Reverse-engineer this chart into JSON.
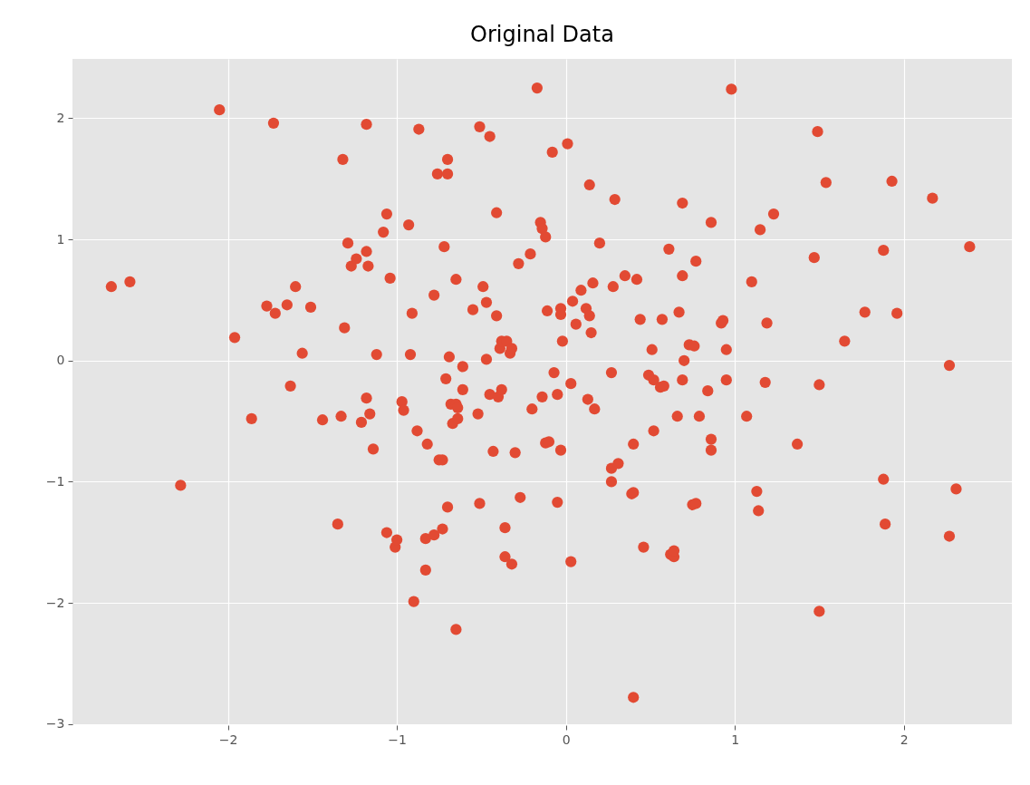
{
  "chart_data": {
    "type": "scatter",
    "title": "Original Data",
    "color": "#e24a33",
    "marker": "circle",
    "grid": true,
    "xlim": [
      -2.92,
      2.64
    ],
    "ylim": [
      -3.01,
      2.49
    ],
    "xticks": [
      {
        "value": -2,
        "label": "−2"
      },
      {
        "value": -1,
        "label": "−1"
      },
      0,
      1,
      2
    ],
    "yticks": [
      {
        "value": -3,
        "label": "−3"
      },
      {
        "value": -2,
        "label": "−2"
      },
      {
        "value": -1,
        "label": "−1"
      },
      0,
      1,
      2
    ],
    "x": [
      -2.69,
      -2.58,
      -2.28,
      -2.05,
      -1.96,
      -1.86,
      -1.77,
      -1.73,
      -1.72,
      -1.65,
      -1.63,
      -1.6,
      -1.56,
      -1.51,
      -1.44,
      -1.35,
      -1.32,
      -1.33,
      -1.31,
      -1.29,
      -1.27,
      -1.24,
      -1.21,
      -1.18,
      -1.18,
      -1.18,
      -1.17,
      -1.16,
      -1.14,
      -1.12,
      -1.08,
      -1.06,
      -1.06,
      -1.04,
      -1.01,
      -1.0,
      -0.97,
      -0.96,
      -0.93,
      -0.92,
      -0.91,
      -0.9,
      -0.88,
      -0.87,
      -0.83,
      -0.83,
      -0.82,
      -0.78,
      -0.78,
      -0.76,
      -0.75,
      -0.73,
      -0.73,
      -0.72,
      -0.71,
      -0.7,
      -0.7,
      -0.7,
      -0.69,
      -0.68,
      -0.67,
      -0.65,
      -0.65,
      -0.65,
      -0.64,
      -0.64,
      -0.61,
      -0.61,
      -0.55,
      -0.52,
      -0.51,
      -0.51,
      -0.49,
      -0.47,
      -0.47,
      -0.45,
      -0.45,
      -0.43,
      -0.41,
      -0.41,
      -0.4,
      -0.39,
      -0.38,
      -0.38,
      -0.36,
      -0.36,
      -0.35,
      -0.33,
      -0.32,
      -0.32,
      -0.3,
      -0.28,
      -0.27,
      -0.21,
      -0.2,
      -0.17,
      -0.15,
      -0.14,
      -0.14,
      -0.12,
      -0.12,
      -0.11,
      -0.1,
      -0.08,
      -0.07,
      -0.05,
      -0.05,
      -0.03,
      -0.03,
      -0.03,
      -0.02,
      0.01,
      0.03,
      0.03,
      0.04,
      0.06,
      0.09,
      0.12,
      0.13,
      0.14,
      0.14,
      0.15,
      0.16,
      0.17,
      0.2,
      0.27,
      0.27,
      0.27,
      0.28,
      0.29,
      0.31,
      0.35,
      0.39,
      0.4,
      0.4,
      0.4,
      0.42,
      0.44,
      0.46,
      0.49,
      0.51,
      0.52,
      0.52,
      0.56,
      0.57,
      0.58,
      0.61,
      0.62,
      0.64,
      0.64,
      0.66,
      0.67,
      0.69,
      0.69,
      0.69,
      0.7,
      0.73,
      0.75,
      0.76,
      0.77,
      0.77,
      0.79,
      0.84,
      0.86,
      0.86,
      0.86,
      0.92,
      0.93,
      0.95,
      0.95,
      0.98,
      1.07,
      1.1,
      1.13,
      1.14,
      1.15,
      1.18,
      1.19,
      1.23,
      1.37,
      1.47,
      1.49,
      1.5,
      1.5,
      1.54,
      1.65,
      1.77,
      1.88,
      1.88,
      1.89,
      1.93,
      1.96,
      2.17,
      2.27,
      2.27,
      2.31,
      2.39
    ],
    "values": [
      0.61,
      0.65,
      -1.03,
      2.07,
      0.19,
      -0.48,
      0.45,
      1.96,
      0.39,
      0.46,
      -0.21,
      0.61,
      0.06,
      0.44,
      -0.49,
      -1.35,
      1.66,
      -0.46,
      0.27,
      0.97,
      0.78,
      0.84,
      -0.51,
      1.95,
      0.9,
      -0.31,
      0.78,
      -0.44,
      -0.73,
      0.05,
      1.06,
      -1.42,
      1.21,
      0.68,
      -1.54,
      -1.48,
      -0.34,
      -0.41,
      1.12,
      0.05,
      0.39,
      -1.99,
      -0.58,
      1.91,
      -1.73,
      -1.47,
      -0.69,
      0.54,
      -1.44,
      1.54,
      -0.82,
      -1.39,
      -0.82,
      0.94,
      -0.15,
      1.54,
      1.66,
      -1.21,
      0.03,
      -0.36,
      -0.52,
      0.67,
      -0.36,
      -2.22,
      -0.48,
      -0.39,
      -0.05,
      -0.24,
      0.42,
      -0.44,
      -1.18,
      1.93,
      0.61,
      0.48,
      0.01,
      -0.28,
      1.85,
      -0.75,
      1.22,
      0.37,
      -0.3,
      0.1,
      0.16,
      -0.24,
      -1.38,
      -1.62,
      0.16,
      0.06,
      0.1,
      -1.68,
      -0.76,
      0.8,
      -1.13,
      0.88,
      -0.4,
      2.25,
      1.14,
      1.09,
      -0.3,
      1.02,
      -0.68,
      0.41,
      -0.67,
      1.72,
      -0.1,
      -0.28,
      -1.17,
      0.43,
      -0.74,
      0.38,
      0.16,
      1.79,
      -0.19,
      -1.66,
      0.49,
      0.3,
      0.58,
      0.43,
      -0.32,
      1.45,
      0.37,
      0.23,
      0.64,
      -0.4,
      0.97,
      -0.89,
      -1.0,
      -0.1,
      0.61,
      1.33,
      -0.85,
      0.7,
      -1.1,
      -1.09,
      -0.69,
      -2.78,
      0.67,
      0.34,
      -1.54,
      -0.12,
      0.09,
      -0.16,
      -0.58,
      -0.22,
      0.34,
      -0.21,
      0.92,
      -1.6,
      -1.62,
      -1.57,
      -0.46,
      0.4,
      1.3,
      -0.16,
      0.7,
      0.0,
      0.13,
      -1.19,
      0.12,
      -1.18,
      0.82,
      -0.46,
      -0.25,
      1.14,
      -0.65,
      -0.74,
      0.31,
      0.33,
      0.09,
      -0.16,
      2.24,
      -0.46,
      0.65,
      -1.08,
      -1.24,
      1.08,
      -0.18,
      0.31,
      1.21,
      -0.69,
      0.85,
      1.89,
      -0.2,
      -2.07,
      1.47,
      0.16,
      0.4,
      0.91,
      -0.98,
      -1.35,
      1.48,
      0.39,
      1.34,
      -0.04,
      -1.45,
      -1.06,
      0.94
    ]
  }
}
